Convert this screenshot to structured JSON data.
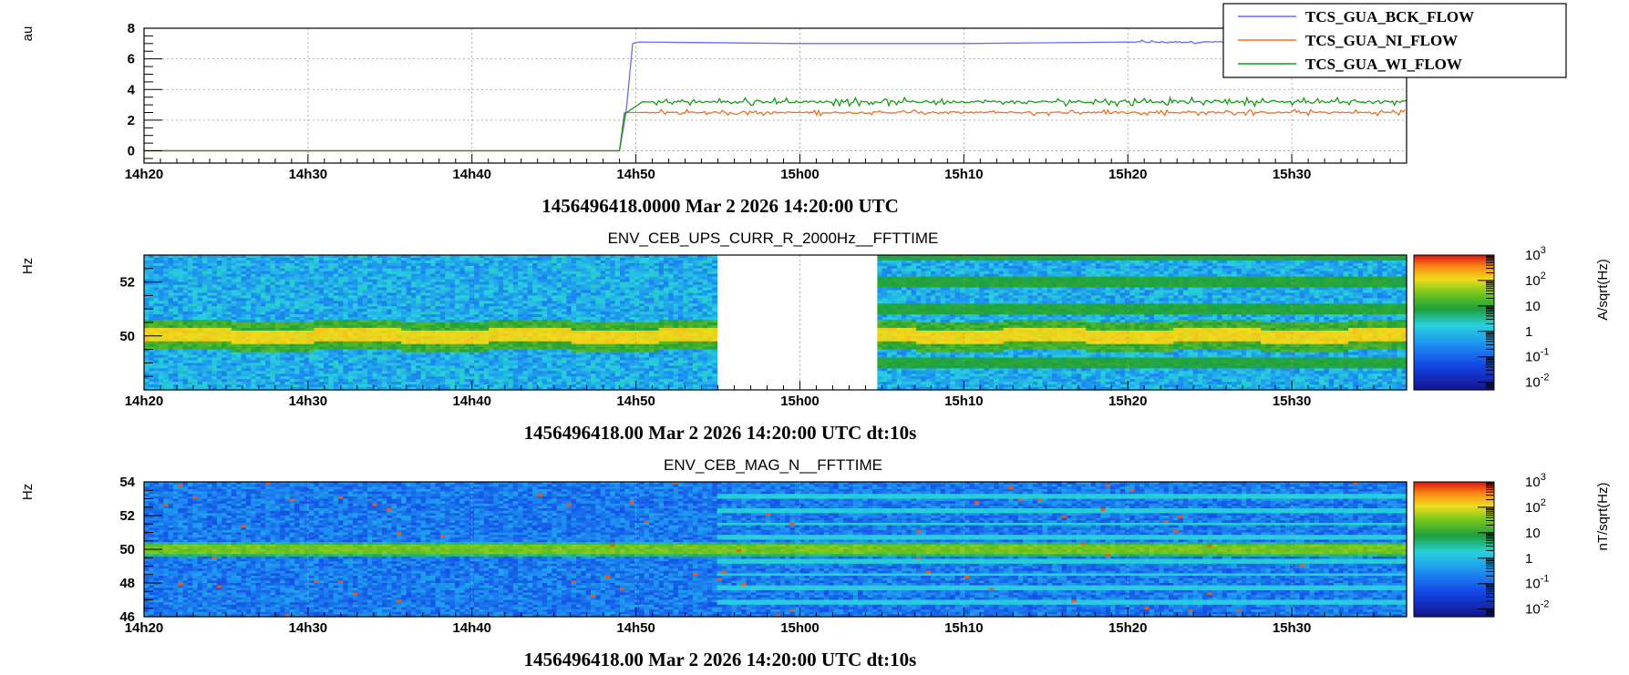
{
  "panels": [
    {
      "kind": "timeseries",
      "ylabel": "au",
      "caption": "1456496418.0000 Mar 2 2026 14:20:00 UTC",
      "legend": [
        "TCS_GUA_BCK_FLOW",
        "TCS_GUA_NI_FLOW",
        "TCS_GUA_WI_FLOW"
      ],
      "y_ticks": [
        "0",
        "2",
        "4",
        "6",
        "8"
      ]
    },
    {
      "kind": "spectrogram",
      "title": "ENV_CEB_UPS_CURR_R_2000Hz__FFTTIME",
      "ylabel": "Hz",
      "zlabel": "A/sqrt(Hz)",
      "caption": "1456496418.00 Mar 2 2026 14:20:00 UTC dt:10s",
      "y_ticks": [
        "50",
        "52"
      ]
    },
    {
      "kind": "spectrogram",
      "title": "ENV_CEB_MAG_N__FFTTIME",
      "ylabel": "Hz",
      "zlabel": "nT/sqrt(Hz)",
      "caption": "1456496418.00 Mar 2 2026 14:20:00 UTC dt:10s",
      "y_ticks": [
        "46",
        "48",
        "50",
        "52",
        "54"
      ]
    }
  ],
  "x_ticks": [
    "14h20",
    "14h30",
    "14h40",
    "14h50",
    "15h00",
    "15h10",
    "15h20",
    "15h30"
  ],
  "colorbar_ticks": [
    "10^3",
    "10^2",
    "10",
    "1",
    "10^-1",
    "10^-2"
  ],
  "colors": {
    "bck": "#6a6aff",
    "ni": "#f07020",
    "wi": "#1a9a1a"
  },
  "chart_data": [
    {
      "type": "line",
      "x_unit": "minutes after 14:20 UTC",
      "xlim": [
        0,
        77
      ],
      "ylim": [
        -0.8,
        8
      ],
      "ylabel": "au",
      "series": [
        {
          "name": "TCS_GUA_BCK_FLOW",
          "color": "#6a6aff",
          "points": [
            [
              0,
              0
            ],
            [
              29,
              0
            ],
            [
              29.4,
              2.5
            ],
            [
              29.8,
              7.0
            ],
            [
              30.2,
              7.1
            ],
            [
              40,
              7.0
            ],
            [
              50,
              7.0
            ],
            [
              60,
              7.1
            ],
            [
              70,
              7.1
            ]
          ]
        },
        {
          "name": "TCS_GUA_NI_FLOW",
          "color": "#f07020",
          "points": [
            [
              0,
              0
            ],
            [
              29,
              0
            ],
            [
              29.3,
              2.5
            ],
            [
              30.2,
              2.5
            ],
            [
              77,
              2.5
            ]
          ]
        },
        {
          "name": "TCS_GUA_WI_FLOW",
          "color": "#1a9a1a",
          "points": [
            [
              0,
              0
            ],
            [
              29,
              0
            ],
            [
              29.3,
              2.4
            ],
            [
              30.4,
              3.2
            ],
            [
              77,
              3.2
            ]
          ]
        }
      ]
    },
    {
      "type": "heatmap",
      "title": "ENV_CEB_UPS_CURR_R_2000Hz__FFTTIME",
      "ylabel": "Hz",
      "zlabel": "A/sqrt(Hz)",
      "xlim": [
        0,
        77
      ],
      "ylim": [
        48,
        53
      ],
      "zscale": "log",
      "zlim": [
        0.005,
        1000
      ],
      "data_gap_minutes": [
        34.8,
        44.8
      ],
      "lines_hz": [
        50.0
      ],
      "lines_hz_after_gap": [
        49.0,
        50.0,
        51.0,
        52.0,
        53.0
      ]
    },
    {
      "type": "heatmap",
      "title": "ENV_CEB_MAG_N__FFTTIME",
      "ylabel": "Hz",
      "zlabel": "nT/sqrt(Hz)",
      "xlim": [
        0,
        77
      ],
      "ylim": [
        46,
        54
      ],
      "zscale": "log",
      "zlim": [
        0.005,
        1000
      ],
      "lines_hz": [
        50.0
      ],
      "lines_hz_after_minute_35": [
        46.8,
        47.7,
        48.5,
        49.3,
        50.0,
        50.7,
        51.5,
        52.3,
        53.2
      ]
    }
  ]
}
